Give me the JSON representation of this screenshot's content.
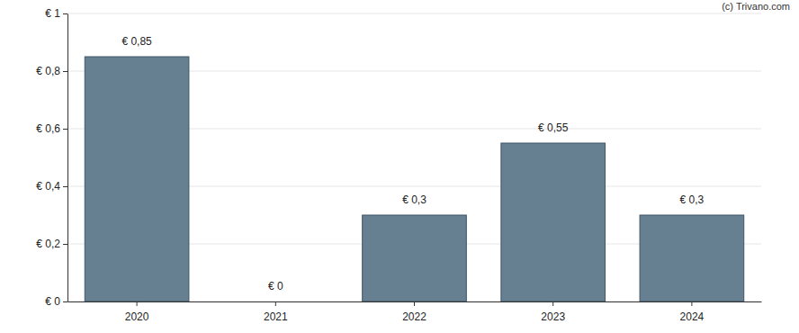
{
  "chart_data": {
    "type": "bar",
    "source": "(c) Trivano.com",
    "categories": [
      "2020",
      "2021",
      "2022",
      "2023",
      "2024"
    ],
    "values": [
      0.85,
      0,
      0.3,
      0.55,
      0.3
    ],
    "value_labels": [
      "€ 0,85",
      "€ 0",
      "€ 0,3",
      "€ 0,55",
      "€ 0,3"
    ],
    "data_labels": true,
    "color": "#667f91",
    "ylim": [
      0,
      1
    ],
    "yticks": [
      {
        "value": 0,
        "label": "€ 0"
      },
      {
        "value": 0.2,
        "label": "€ 0,2"
      },
      {
        "value": 0.4,
        "label": "€ 0,4"
      },
      {
        "value": 0.6,
        "label": "€ 0,6"
      },
      {
        "value": 0.8,
        "label": "€ 0,8"
      },
      {
        "value": 1,
        "label": "€ 1"
      }
    ],
    "grid": true
  }
}
